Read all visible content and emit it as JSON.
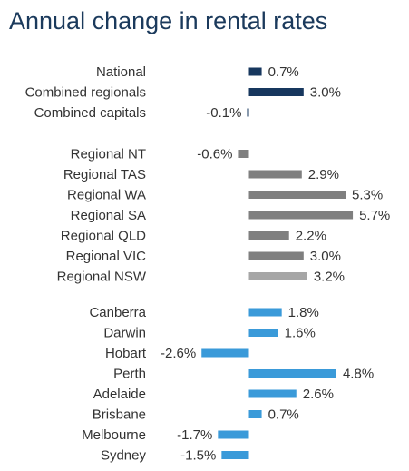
{
  "chart_data": {
    "type": "bar",
    "orientation": "horizontal",
    "title": "Annual change in rental rates",
    "value_format": "percent_1dp",
    "groups": [
      {
        "categories": [
          "National",
          "Combined regionals",
          "Combined capitals"
        ],
        "values": [
          0.7,
          3.0,
          -0.1
        ],
        "colors": [
          "#17375e",
          "#17375e",
          "#17375e"
        ]
      },
      {
        "categories": [
          "Regional NT",
          "Regional TAS",
          "Regional WA",
          "Regional SA",
          "Regional QLD",
          "Regional VIC",
          "Regional NSW"
        ],
        "values": [
          -0.6,
          2.9,
          5.3,
          5.7,
          2.2,
          3.0,
          3.2
        ],
        "colors": [
          "#7f7f7f",
          "#7f7f7f",
          "#7f7f7f",
          "#7f7f7f",
          "#7f7f7f",
          "#7f7f7f",
          "#a6a6a6"
        ]
      },
      {
        "categories": [
          "Canberra",
          "Darwin",
          "Hobart",
          "Perth",
          "Adelaide",
          "Brisbane",
          "Melbourne",
          "Sydney"
        ],
        "values": [
          1.8,
          1.6,
          -2.6,
          4.8,
          2.6,
          0.7,
          -1.7,
          -1.5
        ],
        "colors": [
          "#3a9ad9",
          "#3a9ad9",
          "#3a9ad9",
          "#3a9ad9",
          "#3a9ad9",
          "#3a9ad9",
          "#3a9ad9",
          "#3a9ad9"
        ]
      }
    ],
    "xlim": [
      -2.6,
      5.7
    ],
    "grid": false,
    "legend": "none"
  }
}
